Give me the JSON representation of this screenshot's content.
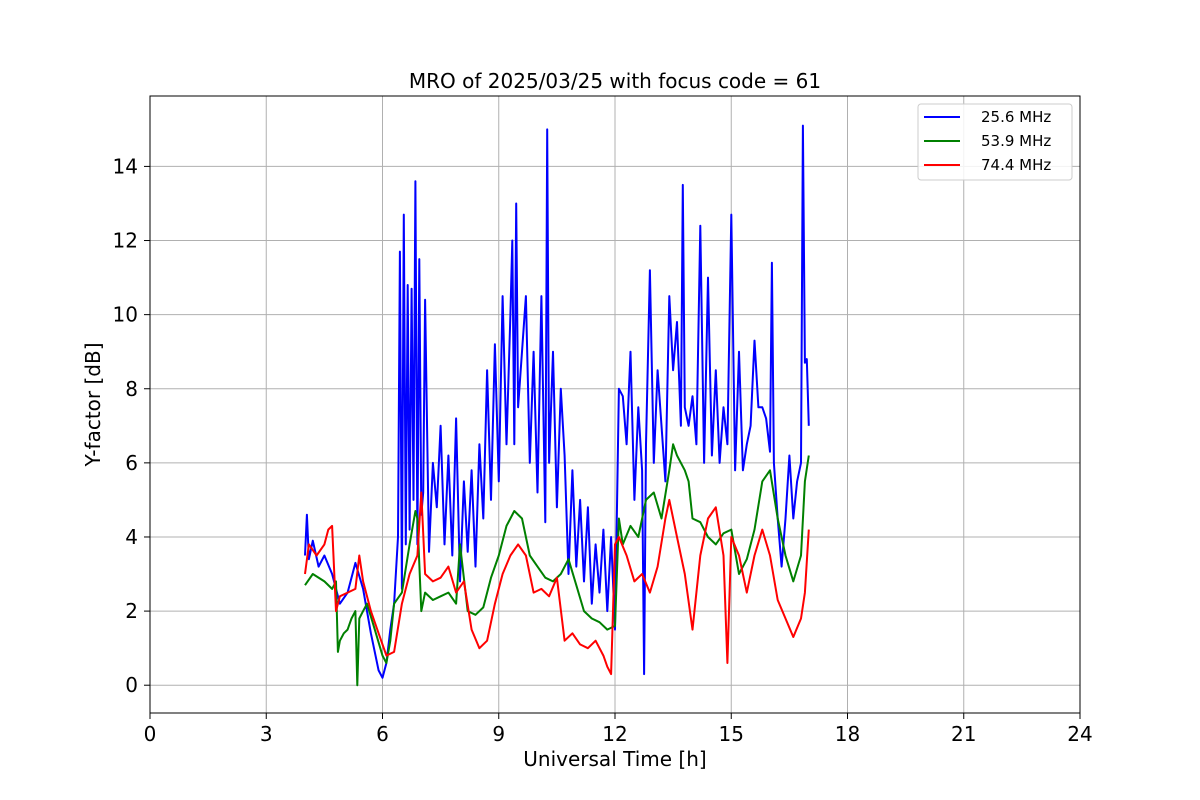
{
  "chart_data": {
    "type": "line",
    "title": "MRO of 2025/03/25 with focus code = 61",
    "xlabel": "Universal Time [h]",
    "ylabel": "Y-factor [dB]",
    "xlim": [
      0,
      24
    ],
    "ylim": [
      -0.75,
      15.9
    ],
    "xticks": [
      0,
      3,
      6,
      9,
      12,
      15,
      18,
      21,
      24
    ],
    "yticks": [
      0,
      2,
      4,
      6,
      8,
      10,
      12,
      14
    ],
    "grid": true,
    "legend_position": "top-right",
    "series": [
      {
        "name": "25.6 MHz",
        "color": "#0000ff",
        "x": [
          4.0,
          4.05,
          4.1,
          4.2,
          4.35,
          4.5,
          4.7,
          4.9,
          5.1,
          5.3,
          5.5,
          5.7,
          5.9,
          6.0,
          6.1,
          6.2,
          6.3,
          6.4,
          6.45,
          6.5,
          6.55,
          6.6,
          6.65,
          6.7,
          6.75,
          6.8,
          6.85,
          6.9,
          6.95,
          7.0,
          7.05,
          7.1,
          7.2,
          7.3,
          7.4,
          7.5,
          7.6,
          7.7,
          7.8,
          7.9,
          8.0,
          8.1,
          8.2,
          8.3,
          8.4,
          8.5,
          8.6,
          8.7,
          8.8,
          8.9,
          9.0,
          9.1,
          9.2,
          9.3,
          9.35,
          9.4,
          9.45,
          9.5,
          9.6,
          9.7,
          9.8,
          9.9,
          10.0,
          10.1,
          10.2,
          10.25,
          10.3,
          10.4,
          10.5,
          10.6,
          10.7,
          10.8,
          10.9,
          11.0,
          11.1,
          11.2,
          11.3,
          11.4,
          11.5,
          11.6,
          11.7,
          11.8,
          11.9,
          12.0,
          12.1,
          12.2,
          12.3,
          12.4,
          12.5,
          12.6,
          12.7,
          12.75,
          12.8,
          12.9,
          13.0,
          13.1,
          13.2,
          13.3,
          13.4,
          13.5,
          13.6,
          13.7,
          13.75,
          13.8,
          13.9,
          14.0,
          14.1,
          14.2,
          14.3,
          14.4,
          14.5,
          14.6,
          14.7,
          14.8,
          14.9,
          15.0,
          15.1,
          15.2,
          15.3,
          15.4,
          15.5,
          15.6,
          15.7,
          15.8,
          15.9,
          16.0,
          16.05,
          16.1,
          16.2,
          16.3,
          16.4,
          16.5,
          16.6,
          16.7,
          16.8,
          16.85,
          16.9,
          16.95,
          17.0
        ],
        "y": [
          3.5,
          4.6,
          3.4,
          3.9,
          3.2,
          3.5,
          3.0,
          2.2,
          2.5,
          3.3,
          2.6,
          1.4,
          0.4,
          0.2,
          0.6,
          1.5,
          2.2,
          4.0,
          11.7,
          2.6,
          12.7,
          3.8,
          10.8,
          4.2,
          10.7,
          5.0,
          13.6,
          3.8,
          11.5,
          4.6,
          5.2,
          10.4,
          3.6,
          6.0,
          4.8,
          7.0,
          3.8,
          6.2,
          3.5,
          7.2,
          2.8,
          5.5,
          3.6,
          5.8,
          3.2,
          6.5,
          4.5,
          8.5,
          5.0,
          9.2,
          5.5,
          10.5,
          6.5,
          10.0,
          12.0,
          6.5,
          13.0,
          7.5,
          9.0,
          10.5,
          6.0,
          9.0,
          5.2,
          10.5,
          4.4,
          15.0,
          6.0,
          9.0,
          4.8,
          8.0,
          6.2,
          3.0,
          5.8,
          3.2,
          5.0,
          2.8,
          4.8,
          2.2,
          3.8,
          2.5,
          4.2,
          2.0,
          4.0,
          1.5,
          8.0,
          7.8,
          6.5,
          9.0,
          5.0,
          7.5,
          5.8,
          0.3,
          6.5,
          11.2,
          6.0,
          8.5,
          7.0,
          5.5,
          10.5,
          8.5,
          9.8,
          7.0,
          13.5,
          7.5,
          7.0,
          7.8,
          6.5,
          12.4,
          6.0,
          11.0,
          6.2,
          8.5,
          6.0,
          7.5,
          6.5,
          12.7,
          5.8,
          9.0,
          5.8,
          6.5,
          7.0,
          9.3,
          7.5,
          7.5,
          7.2,
          6.3,
          11.4,
          6.0,
          4.5,
          3.2,
          4.5,
          6.2,
          4.5,
          5.5,
          6.0,
          15.1,
          8.7,
          8.8,
          7.0
        ]
      },
      {
        "name": "53.9 MHz",
        "color": "#008000",
        "x": [
          4.0,
          4.2,
          4.5,
          4.7,
          4.8,
          4.85,
          4.9,
          5.0,
          5.1,
          5.2,
          5.3,
          5.35,
          5.4,
          5.5,
          5.6,
          5.8,
          6.0,
          6.1,
          6.2,
          6.3,
          6.5,
          6.7,
          6.85,
          6.9,
          7.0,
          7.1,
          7.3,
          7.5,
          7.7,
          7.9,
          8.0,
          8.2,
          8.4,
          8.6,
          8.8,
          9.0,
          9.2,
          9.4,
          9.6,
          9.8,
          10.0,
          10.2,
          10.4,
          10.6,
          10.8,
          11.0,
          11.2,
          11.4,
          11.6,
          11.8,
          12.0,
          12.1,
          12.2,
          12.4,
          12.6,
          12.8,
          13.0,
          13.2,
          13.4,
          13.5,
          13.6,
          13.8,
          13.9,
          14.0,
          14.2,
          14.4,
          14.6,
          14.8,
          15.0,
          15.2,
          15.4,
          15.6,
          15.8,
          16.0,
          16.2,
          16.4,
          16.6,
          16.8,
          16.9,
          17.0
        ],
        "y": [
          2.7,
          3.0,
          2.8,
          2.6,
          2.8,
          0.9,
          1.2,
          1.4,
          1.5,
          1.8,
          2.0,
          0.0,
          1.8,
          2.0,
          2.2,
          1.5,
          0.8,
          0.6,
          1.2,
          2.2,
          2.5,
          3.8,
          4.7,
          4.5,
          2.0,
          2.5,
          2.3,
          2.4,
          2.5,
          2.2,
          3.8,
          2.0,
          1.9,
          2.1,
          2.9,
          3.5,
          4.3,
          4.7,
          4.5,
          3.5,
          3.2,
          2.9,
          2.8,
          3.0,
          3.4,
          2.7,
          2.0,
          1.8,
          1.7,
          1.5,
          1.6,
          4.5,
          3.8,
          4.3,
          4.0,
          5.0,
          5.2,
          4.5,
          5.8,
          6.5,
          6.2,
          5.8,
          5.5,
          4.5,
          4.4,
          4.0,
          3.8,
          4.1,
          4.2,
          3.0,
          3.4,
          4.2,
          5.5,
          5.8,
          4.5,
          3.5,
          2.8,
          3.5,
          5.5,
          6.2
        ]
      },
      {
        "name": "74.4 MHz",
        "color": "#ff0000",
        "x": [
          4.0,
          4.1,
          4.3,
          4.5,
          4.6,
          4.7,
          4.8,
          4.9,
          5.1,
          5.3,
          5.4,
          5.5,
          5.7,
          5.9,
          6.1,
          6.3,
          6.5,
          6.7,
          6.9,
          7.0,
          7.1,
          7.3,
          7.5,
          7.7,
          7.9,
          8.1,
          8.3,
          8.5,
          8.7,
          8.9,
          9.1,
          9.3,
          9.5,
          9.7,
          9.9,
          10.1,
          10.3,
          10.5,
          10.7,
          10.9,
          11.1,
          11.3,
          11.5,
          11.7,
          11.8,
          11.9,
          12.0,
          12.1,
          12.3,
          12.5,
          12.7,
          12.9,
          13.1,
          13.3,
          13.4,
          13.6,
          13.8,
          14.0,
          14.2,
          14.4,
          14.6,
          14.8,
          14.9,
          15.0,
          15.2,
          15.4,
          15.6,
          15.8,
          16.0,
          16.2,
          16.4,
          16.6,
          16.8,
          16.9,
          17.0
        ],
        "y": [
          3.0,
          3.8,
          3.5,
          3.8,
          4.2,
          4.3,
          2.0,
          2.4,
          2.5,
          2.6,
          3.5,
          2.8,
          2.0,
          1.4,
          0.8,
          0.9,
          2.2,
          3.0,
          3.5,
          5.2,
          3.0,
          2.8,
          2.9,
          3.2,
          2.5,
          2.8,
          1.5,
          1.0,
          1.2,
          2.2,
          3.0,
          3.5,
          3.8,
          3.5,
          2.5,
          2.6,
          2.4,
          2.9,
          1.2,
          1.4,
          1.1,
          1.0,
          1.2,
          0.8,
          0.5,
          0.3,
          3.8,
          4.0,
          3.5,
          2.8,
          3.0,
          2.5,
          3.2,
          4.5,
          5.0,
          4.0,
          3.0,
          1.5,
          3.5,
          4.5,
          4.8,
          3.5,
          0.6,
          4.0,
          3.5,
          2.5,
          3.5,
          4.2,
          3.5,
          2.3,
          1.8,
          1.3,
          1.8,
          2.5,
          4.2
        ]
      }
    ]
  }
}
